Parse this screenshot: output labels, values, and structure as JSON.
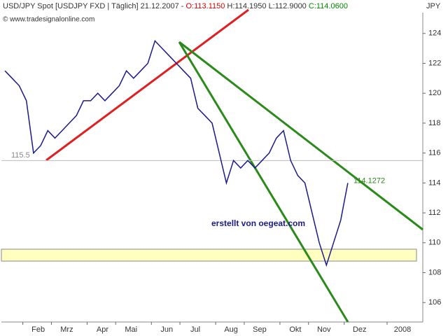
{
  "header": {
    "instrument": "USD/JPY Spot [USDJPY FXD | Täglich] 21.12.2007 -",
    "open": "O:113.1150",
    "high": "H:114.1950",
    "low": "L:112.9000",
    "close": "C:114.0600",
    "copyright": "© www.tradesignalonline.com",
    "currency": "JPY",
    "credit": "erstellt von oegeat.com"
  },
  "chart_data": {
    "type": "line",
    "categories": [
      null,
      null,
      null,
      "Feb",
      null,
      null,
      null,
      "Mrz",
      null,
      null,
      null,
      null,
      "Apr",
      null,
      null,
      null,
      "Mai",
      null,
      null,
      null,
      null,
      "Jun",
      null,
      null,
      null,
      "Jul",
      null,
      null,
      null,
      null,
      "Aug",
      null,
      null,
      null,
      "Sep",
      null,
      null,
      null,
      null,
      "Okt",
      null,
      null,
      null,
      "Nov",
      null,
      null,
      null,
      null,
      "Dez",
      null,
      null,
      null,
      null,
      null,
      "2008",
      null,
      null,
      null,
      null
    ],
    "series": [
      {
        "name": "USD/JPY",
        "color": "#1a1a8c",
        "values": [
          121.5,
          121.0,
          120.5,
          119.5,
          116.0,
          116.5,
          117.5,
          117.0,
          117.5,
          118.0,
          118.5,
          119.5,
          119.5,
          120.0,
          119.5,
          120.0,
          120.5,
          121.5,
          121.0,
          121.5,
          122.0,
          123.5,
          123.0,
          122.5,
          122.0,
          121.5,
          121.0,
          119.0,
          118.5,
          118.0,
          116.0,
          114.0,
          115.5,
          115.0,
          115.5,
          115.0,
          115.5,
          116.0,
          117.0,
          117.5,
          115.5,
          114.5,
          114.0,
          112.0,
          110.0,
          108.5,
          110.0,
          111.5,
          114.0,
          null,
          null,
          null,
          null,
          null,
          null,
          null,
          null,
          null,
          null
        ]
      }
    ],
    "ylim": [
      104.7,
      125.3
    ],
    "yticks": [
      106,
      108,
      110,
      112,
      114,
      116,
      118,
      120,
      122,
      124
    ],
    "hline": 115.5,
    "target": 114.1272
  }
}
